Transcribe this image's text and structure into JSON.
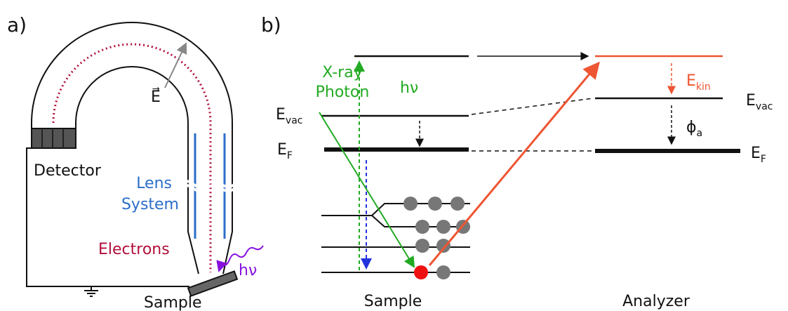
{
  "panel_a": {
    "label": "a)",
    "detector": "Detector",
    "lens_system": [
      "Lens",
      "System"
    ],
    "electrons": "Electrons",
    "photon": "hν",
    "sample": "Sample",
    "field": "E⃗"
  },
  "panel_b": {
    "label": "b)",
    "xray_photon": [
      "X-ray",
      "Photon"
    ],
    "photon_energy": "hν",
    "sample_vacuum": {
      "symbol": "E",
      "sub": "vac"
    },
    "sample_fermi": {
      "symbol": "E",
      "sub": "F"
    },
    "kinetic": {
      "symbol": "E",
      "sub": "kin"
    },
    "analyzer_vacuum": {
      "symbol": "E",
      "sub": "vac"
    },
    "work_function": {
      "symbol": "ϕ",
      "sub": "a"
    },
    "analyzer_fermi": {
      "symbol": "E",
      "sub": "F"
    },
    "sample": "Sample",
    "analyzer": "Analyzer"
  }
}
